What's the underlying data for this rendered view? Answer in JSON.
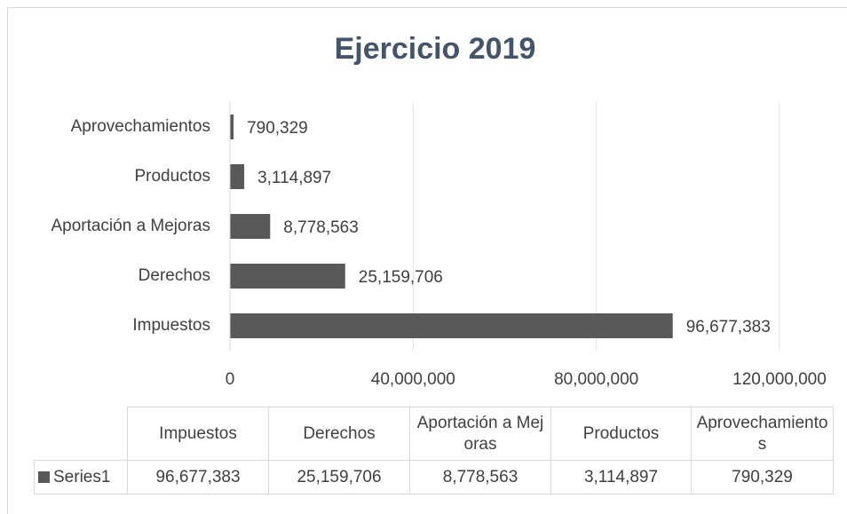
{
  "chart_data": {
    "type": "bar",
    "orientation": "horizontal",
    "title": "Ejercicio 2019",
    "categories": [
      "Impuestos",
      "Derechos",
      "Aportación a Mejoras",
      "Productos",
      "Aprovechamientos"
    ],
    "series": [
      {
        "name": "Series1",
        "color": "#595959",
        "values": [
          96677383,
          25159706,
          8778563,
          3114897,
          790329
        ],
        "value_labels": [
          "96,677,383",
          "25,159,706",
          "8,778,563",
          "3,114,897",
          "790,329"
        ]
      }
    ],
    "xlim": [
      0,
      120000000
    ],
    "xticks": [
      0,
      {
        "value": 40000000,
        "label": "40,000,000"
      },
      {
        "value": 80000000,
        "label": "80,000,000"
      },
      {
        "value": 120000000,
        "label": "120,000,000"
      }
    ],
    "grid": true
  }
}
